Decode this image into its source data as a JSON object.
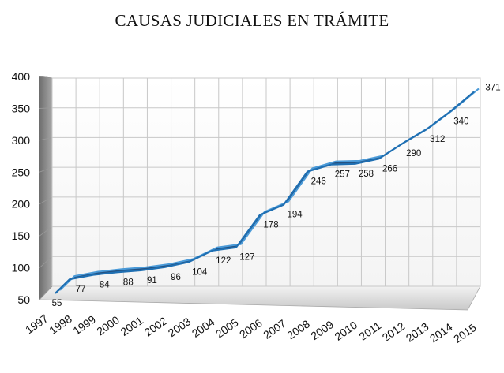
{
  "chart_data": {
    "type": "line",
    "title": "CAUSAS JUDICIALES EN TRÁMITE",
    "xlabel": "",
    "ylabel": "",
    "categories": [
      "1997",
      "1998",
      "1999",
      "2000",
      "2001",
      "2002",
      "2003",
      "2004",
      "2005",
      "2006",
      "2007",
      "2008",
      "2009",
      "2010",
      "2011",
      "2012",
      "2013",
      "2014",
      "2015"
    ],
    "series": [
      {
        "values": [
          55,
          77,
          84,
          88,
          91,
          96,
          104,
          122,
          127,
          178,
          194,
          246,
          257,
          258,
          266,
          290,
          312,
          340,
          371
        ]
      }
    ],
    "data_labels": [
      "55",
      "77",
      "84",
      "88",
      "91",
      "96",
      "104",
      "122",
      "127",
      "178",
      "194",
      "246",
      "257",
      "258",
      "266",
      "290",
      "312",
      "340",
      "371"
    ],
    "ylim": [
      50,
      400
    ],
    "yticks": [
      "50",
      "100",
      "150",
      "200",
      "250",
      "300",
      "350",
      "400"
    ],
    "grid": true,
    "legend": "none",
    "colors": {
      "line": "#1f6fb2",
      "line_dark": "#0d3f73",
      "grid": "#c8c8c8",
      "floor": "#dcdcdc",
      "wall": "#8c8c8c"
    }
  }
}
